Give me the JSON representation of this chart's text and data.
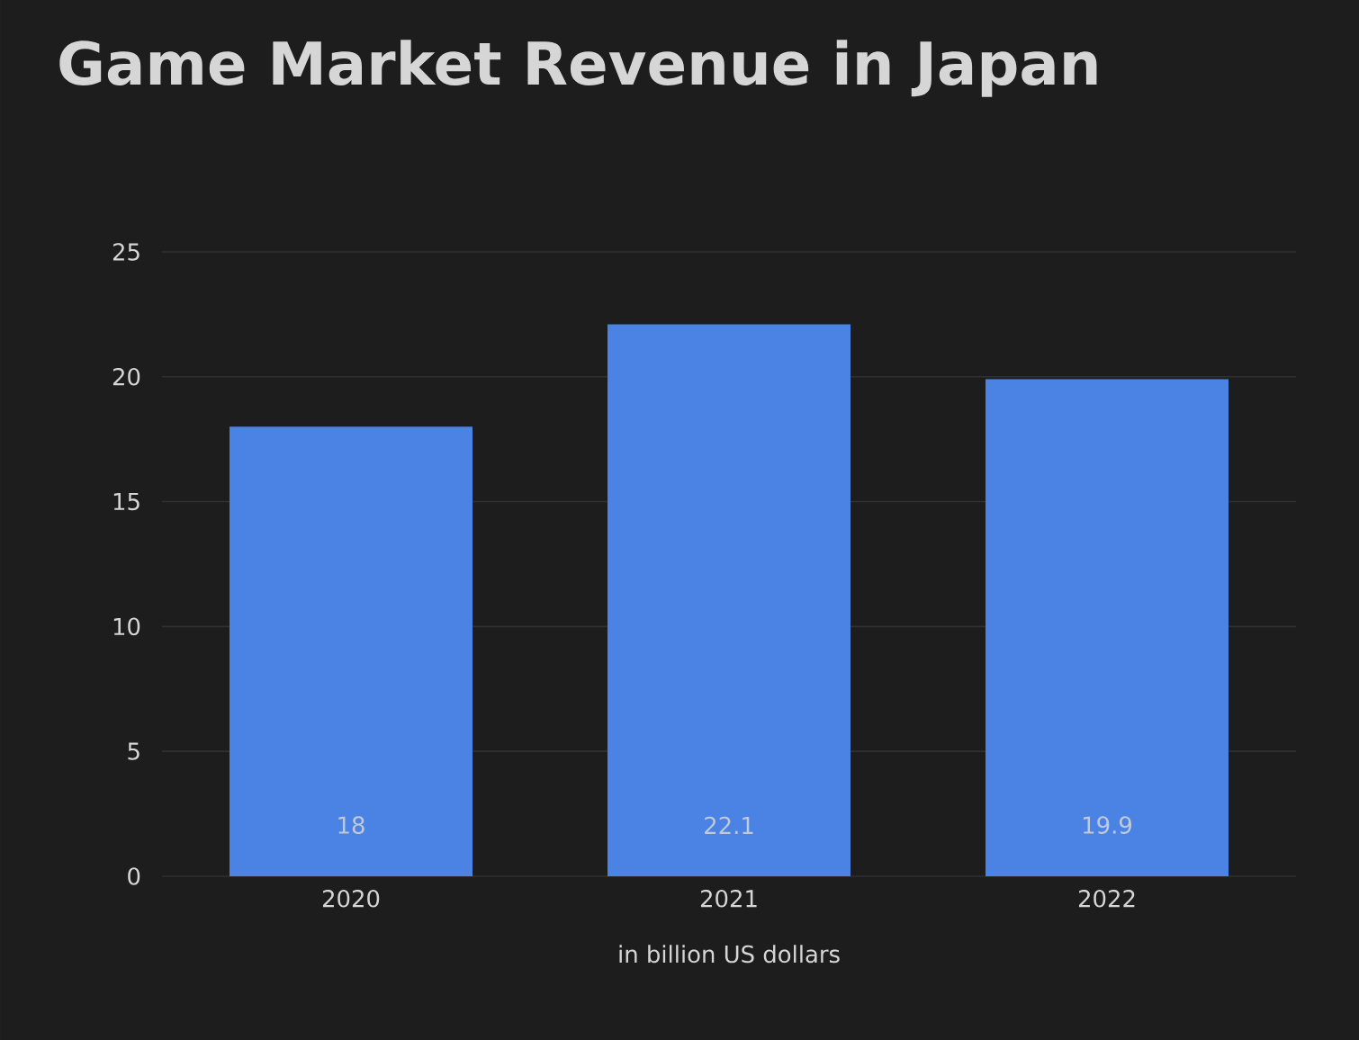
{
  "chart_data": {
    "type": "bar",
    "title": "Game Market Revenue in Japan",
    "xlabel": "in billion US dollars",
    "categories": [
      "2020",
      "2021",
      "2022"
    ],
    "values": [
      18,
      22.1,
      19.9
    ],
    "color": "#4a83e3",
    "ylim": [
      0,
      25
    ],
    "yticks": [
      0,
      5,
      10,
      15,
      20,
      25
    ],
    "grid": "y",
    "data_labels": true
  }
}
